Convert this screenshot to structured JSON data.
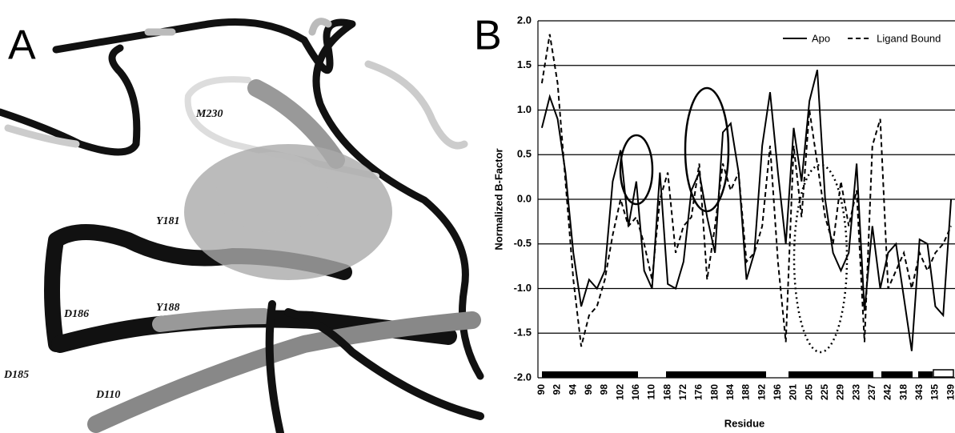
{
  "panel_a": {
    "label": "A",
    "residue_labels": [
      "M230",
      "Y181",
      "D186",
      "Y188",
      "D185",
      "D110"
    ]
  },
  "chart_data": {
    "type": "line",
    "panel_label": "B",
    "x_label": "Residue",
    "y_label": "Normalized B-Factor",
    "categories": [
      "90",
      null,
      "92",
      null,
      "94",
      null,
      "96",
      null,
      "98",
      null,
      "102",
      null,
      "106",
      null,
      "110",
      null,
      "168",
      null,
      "172",
      null,
      "176",
      null,
      "180",
      null,
      "184",
      null,
      "188",
      null,
      "192",
      null,
      "196",
      null,
      "201",
      null,
      "205",
      null,
      "225",
      null,
      "229",
      null,
      "233",
      null,
      "237",
      null,
      "242",
      null,
      "318",
      null,
      "343",
      null,
      "135",
      null,
      "139"
    ],
    "series": [
      {
        "name": "Apo",
        "color": "#000000",
        "dash": "solid",
        "values": [
          0.8,
          1.15,
          0.9,
          0.3,
          -0.6,
          -1.2,
          -0.9,
          -1.0,
          -0.8,
          0.2,
          0.55,
          -0.3,
          0.2,
          -0.8,
          -1.0,
          0.3,
          -0.95,
          -1.0,
          -0.7,
          0.1,
          0.3,
          -0.2,
          -0.6,
          0.75,
          0.85,
          0.3,
          -0.9,
          -0.6,
          0.6,
          1.2,
          0.3,
          -0.5,
          0.8,
          0.2,
          1.1,
          1.45,
          0.0,
          -0.6,
          -0.8,
          -0.6,
          0.4,
          -1.25,
          -0.3,
          -1.0,
          -0.6,
          -0.5,
          -1.1,
          -1.7,
          -0.45,
          -0.5,
          -1.2,
          -1.3,
          0.0
        ]
      },
      {
        "name": "Ligand Bound",
        "color": "#000000",
        "dash": "dashed",
        "values": [
          1.3,
          1.85,
          1.3,
          0.2,
          -0.9,
          -1.65,
          -1.3,
          -1.2,
          -0.9,
          -0.4,
          0.0,
          -0.3,
          -0.2,
          -0.5,
          -0.9,
          0.0,
          0.3,
          -0.6,
          -0.3,
          -0.2,
          0.4,
          -0.9,
          -0.3,
          0.4,
          0.1,
          0.3,
          -0.7,
          -0.6,
          -0.3,
          0.6,
          -0.7,
          -1.6,
          0.6,
          -0.2,
          1.0,
          0.4,
          -0.2,
          -0.5,
          0.2,
          -0.3,
          0.1,
          -1.6,
          0.6,
          0.9,
          -1.0,
          -0.8,
          -0.6,
          -1.0,
          -0.6,
          -0.8,
          -0.6,
          -0.5,
          -0.3
        ]
      }
    ],
    "ylim": [
      -2,
      2
    ],
    "yticks": [
      {
        "value": 2,
        "label": "2.0"
      },
      1.5,
      {
        "value": 1,
        "label": "1.0"
      },
      0.5,
      {
        "value": 0,
        "label": "0.0"
      },
      -0.5,
      {
        "value": -1,
        "label": "-1.0"
      },
      -1.5,
      {
        "value": -2,
        "label": "-2.0"
      }
    ],
    "grid": true,
    "legend": "top-right"
  }
}
